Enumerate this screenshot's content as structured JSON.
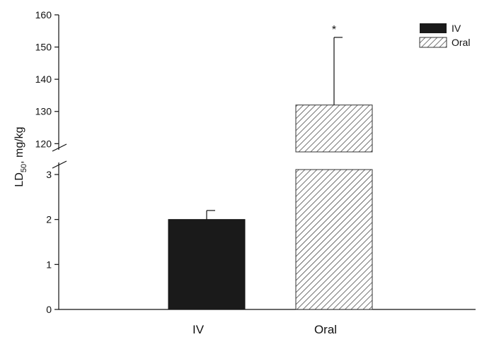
{
  "chart_data": {
    "type": "bar",
    "categories": [
      "IV",
      "Oral"
    ],
    "series": [
      {
        "name": "IV",
        "values": [
          2.0,
          null
        ],
        "errors": [
          0.2,
          null
        ],
        "color": "#1a1a1a",
        "pattern": "solid"
      },
      {
        "name": "Oral",
        "values": [
          null,
          132
        ],
        "errors": [
          null,
          21
        ],
        "color": "#ffffff",
        "pattern": "diagonal-hatch"
      }
    ],
    "ylabel": {
      "main": "LD",
      "sub": "50",
      "rest": ", mg/kg"
    },
    "y_axis": {
      "broken": true,
      "lower_segment": {
        "range": [
          0,
          3
        ],
        "ticks": [
          "0",
          "1",
          "2",
          "3"
        ]
      },
      "upper_segment": {
        "range": [
          117,
          160
        ],
        "ticks": [
          "120",
          "130",
          "140",
          "150",
          "160"
        ]
      }
    },
    "annotations": [
      {
        "category": "Oral",
        "text": "*"
      }
    ],
    "legend": {
      "position": "top-right",
      "entries": [
        "IV",
        "Oral"
      ]
    },
    "grid": false
  }
}
